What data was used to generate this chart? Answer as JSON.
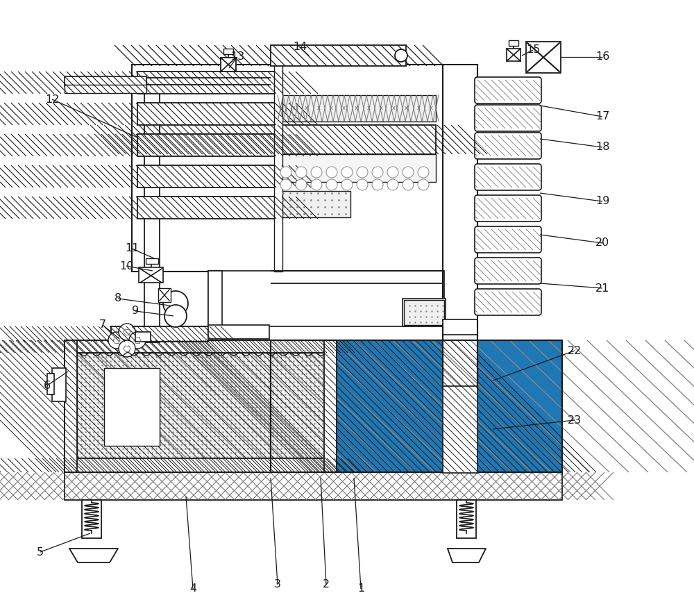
{
  "bg_color": "#ffffff",
  "lc": "#1a1a1a",
  "figsize": [
    10.0,
    8.77
  ],
  "dpi": 100,
  "labels": [
    [
      "1",
      520,
      848
    ],
    [
      "2",
      470,
      842
    ],
    [
      "3",
      400,
      842
    ],
    [
      "4",
      278,
      848
    ],
    [
      "5",
      58,
      795
    ],
    [
      "6",
      68,
      555
    ],
    [
      "7",
      148,
      468
    ],
    [
      "8",
      170,
      430
    ],
    [
      "9",
      195,
      448
    ],
    [
      "10",
      182,
      383
    ],
    [
      "11",
      190,
      358
    ],
    [
      "12",
      75,
      143
    ],
    [
      "13",
      342,
      82
    ],
    [
      "14",
      432,
      68
    ],
    [
      "15",
      768,
      72
    ],
    [
      "16",
      868,
      82
    ],
    [
      "17",
      868,
      168
    ],
    [
      "18",
      868,
      212
    ],
    [
      "19",
      868,
      290
    ],
    [
      "20",
      868,
      350
    ],
    [
      "21",
      868,
      415
    ],
    [
      "22",
      828,
      505
    ],
    [
      "23",
      828,
      605
    ]
  ],
  "leader_lines": [
    [
      "1",
      520,
      848,
      510,
      688
    ],
    [
      "2",
      470,
      842,
      462,
      688
    ],
    [
      "3",
      400,
      842,
      390,
      688
    ],
    [
      "4",
      278,
      848,
      268,
      715
    ],
    [
      "5",
      58,
      795,
      130,
      768
    ],
    [
      "6",
      68,
      555,
      98,
      535
    ],
    [
      "7",
      148,
      468,
      172,
      488
    ],
    [
      "8",
      170,
      430,
      245,
      440
    ],
    [
      "9",
      195,
      448,
      250,
      455
    ],
    [
      "10",
      182,
      383,
      220,
      390
    ],
    [
      "11",
      190,
      358,
      222,
      372
    ],
    [
      "12",
      75,
      143,
      198,
      198
    ],
    [
      "13",
      342,
      82,
      330,
      98
    ],
    [
      "14",
      432,
      68,
      445,
      80
    ],
    [
      "15",
      768,
      72,
      752,
      80
    ],
    [
      "16",
      868,
      82,
      808,
      82
    ],
    [
      "17",
      868,
      168,
      778,
      152
    ],
    [
      "18",
      868,
      212,
      778,
      200
    ],
    [
      "19",
      868,
      290,
      778,
      278
    ],
    [
      "20",
      868,
      350,
      778,
      338
    ],
    [
      "21",
      868,
      415,
      778,
      408
    ],
    [
      "22",
      828,
      505,
      710,
      548
    ],
    [
      "23",
      828,
      605,
      710,
      618
    ]
  ]
}
